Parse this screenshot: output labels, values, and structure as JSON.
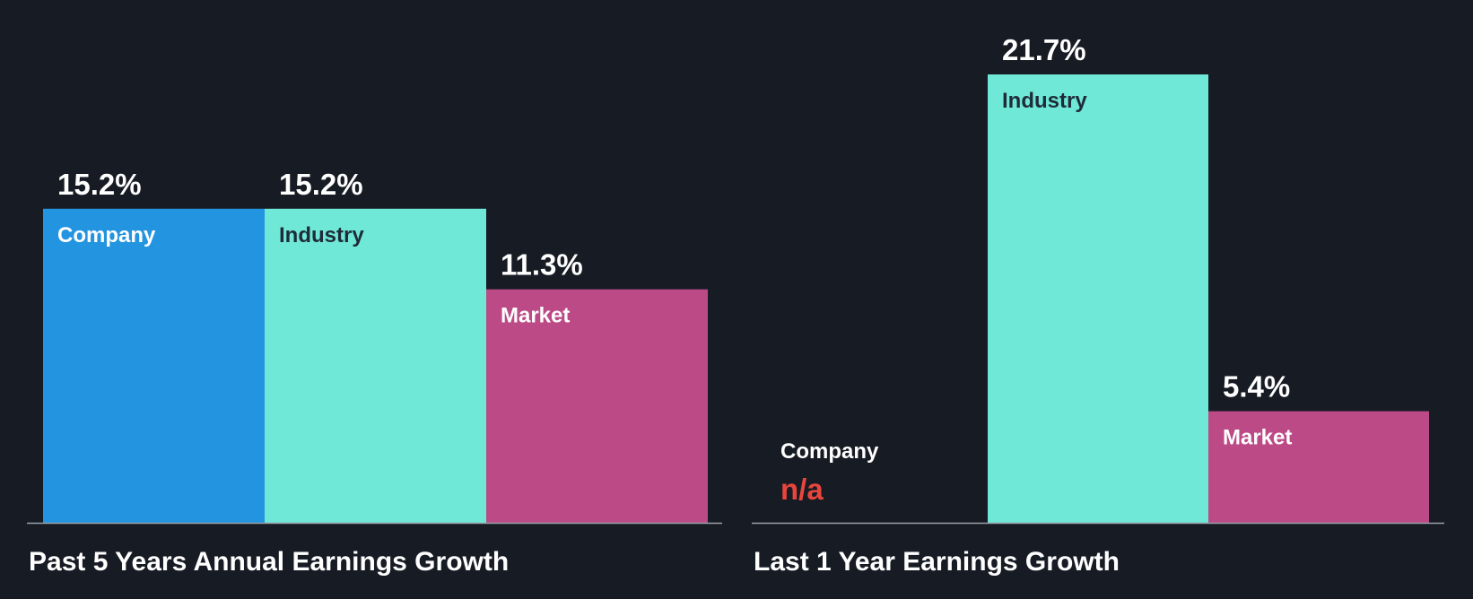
{
  "chart_data": [
    {
      "type": "bar",
      "title": "Past 5 Years Annual Earnings Growth",
      "categories": [
        "Company",
        "Industry",
        "Market"
      ],
      "values": [
        15.2,
        15.2,
        11.3
      ],
      "value_labels": [
        "15.2%",
        "15.2%",
        "11.3%"
      ],
      "colors": [
        "#2394e0",
        "#6fe8d7",
        "#bb4a86"
      ],
      "label_colors": [
        "#ffffff",
        "#1f2b37",
        "#ffffff"
      ],
      "ylim": [
        0,
        21.7
      ],
      "grid": false
    },
    {
      "type": "bar",
      "title": "Last 1 Year Earnings Growth",
      "categories": [
        "Company",
        "Industry",
        "Market"
      ],
      "values": [
        null,
        21.7,
        5.4
      ],
      "value_labels": [
        "n/a",
        "21.7%",
        "5.4%"
      ],
      "colors": [
        "#2394e0",
        "#6fe8d7",
        "#bb4a86"
      ],
      "label_colors": [
        "#ffffff",
        "#1f2b37",
        "#ffffff"
      ],
      "na_color": "#e8463c",
      "ylim": [
        0,
        21.7
      ],
      "grid": false
    }
  ]
}
